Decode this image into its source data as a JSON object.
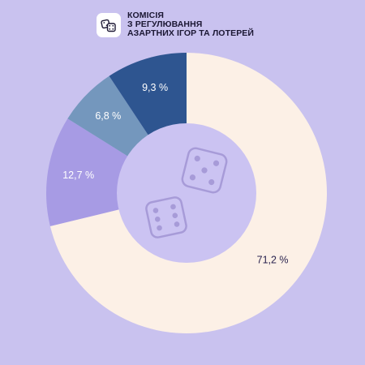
{
  "header": {
    "icon": "dice-icon",
    "title_lines": [
      "КОМІСІЯ",
      "З РЕГУЛЮВАННЯ",
      "АЗАРТНИХ ІГОР ТА ЛОТЕРЕЙ"
    ]
  },
  "chart_data": {
    "type": "pie",
    "style": "donut",
    "start": "top, clockwise",
    "slices": [
      {
        "value": 71.2,
        "label": "71,2 %",
        "color": "#fcf0e6",
        "label_color": "#2b2450"
      },
      {
        "value": 12.7,
        "label": "12,7 %",
        "color": "#a79be4",
        "label_color": "#ffffff"
      },
      {
        "value": 6.8,
        "label": "6,8 %",
        "color": "#7497bd",
        "label_color": "#ffffff"
      },
      {
        "value": 9.3,
        "label": "9,3 %",
        "color": "#2e5590",
        "label_color": "#ffffff"
      }
    ],
    "center_icon": "dice-icon",
    "center_color": "#cbc3f2",
    "legend": "none"
  }
}
